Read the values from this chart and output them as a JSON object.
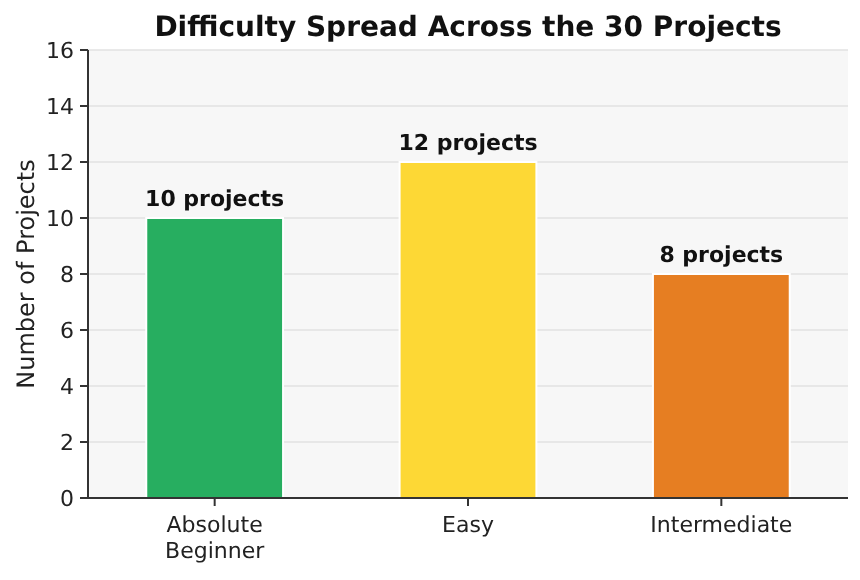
{
  "chart_data": {
    "type": "bar",
    "title": "Difficulty Spread Across the 30 Projects",
    "ylabel": "Number of Projects",
    "categories": [
      "Absolute Beginner",
      "Easy",
      "Intermediate"
    ],
    "values": [
      10,
      12,
      8
    ],
    "colors": [
      "#27ae60",
      "#fdd835",
      "#e67e22"
    ],
    "value_labels": [
      "10 projects",
      "12 projects",
      "8 projects"
    ],
    "ylim": [
      0,
      16
    ],
    "yticks": [
      0,
      2,
      4,
      6,
      8,
      10,
      12,
      14,
      16
    ],
    "grid": "y"
  }
}
